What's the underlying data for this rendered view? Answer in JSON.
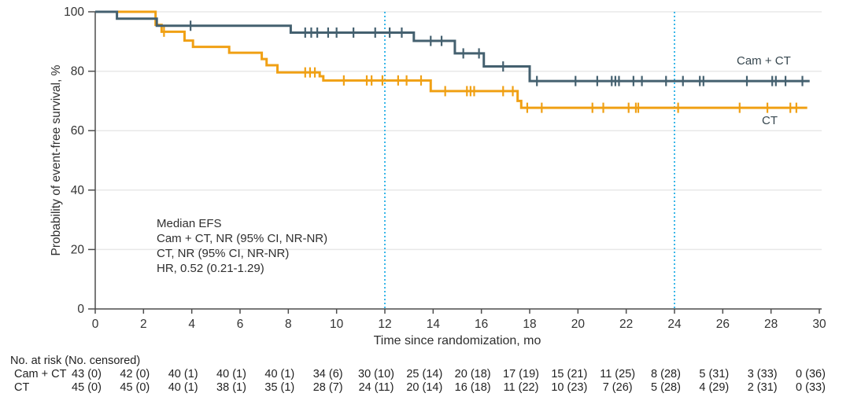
{
  "chart_data": {
    "type": "line",
    "subtype": "kaplan-meier-step",
    "title": "",
    "xlabel": "Time since randomization, mo",
    "ylabel": "Probability of event-free survival, %",
    "xlim": [
      0,
      30
    ],
    "ylim": [
      0,
      100
    ],
    "x_ticks": [
      0,
      2,
      4,
      6,
      8,
      10,
      12,
      14,
      16,
      18,
      20,
      22,
      24,
      26,
      28,
      30
    ],
    "y_ticks": [
      0,
      20,
      40,
      60,
      80,
      100
    ],
    "grid": "horizontal-light",
    "gridline_color": "#e8e8e8",
    "axis_color": "#4d4d4d",
    "tick_label_color": "#333333",
    "reference_lines_x": [
      12,
      24
    ],
    "reference_line_color": "#3ab7e8",
    "annotation_lines": [
      "Median EFS",
      "Cam + CT, NR (95% CI, NR-NR)",
      "CT, NR (95% CI, NR-NR)",
      "HR, 0.52 (0.21-1.29)"
    ],
    "legend_position": "curve-end-labels",
    "series": [
      {
        "id": "cam-ct",
        "name": "Cam + CT",
        "color": "#44606f",
        "start": [
          0,
          100
        ],
        "steps": [
          [
            0.9,
            97.7
          ],
          [
            2.55,
            95.3
          ],
          [
            8.1,
            93.0
          ],
          [
            13.2,
            90.2
          ],
          [
            14.9,
            86.0
          ],
          [
            16.1,
            81.6
          ],
          [
            18.0,
            76.7
          ]
        ],
        "end_x": 29.6,
        "censor_marks": [
          [
            3.95,
            95.3
          ],
          [
            8.7,
            93.0
          ],
          [
            8.95,
            93.0
          ],
          [
            9.2,
            93.0
          ],
          [
            9.65,
            93.0
          ],
          [
            10.0,
            93.0
          ],
          [
            10.7,
            93.0
          ],
          [
            11.6,
            93.0
          ],
          [
            12.2,
            93.0
          ],
          [
            12.7,
            93.0
          ],
          [
            13.9,
            90.2
          ],
          [
            14.35,
            90.2
          ],
          [
            15.25,
            86.0
          ],
          [
            15.9,
            86.0
          ],
          [
            16.9,
            81.6
          ],
          [
            18.3,
            76.7
          ],
          [
            19.9,
            76.7
          ],
          [
            20.8,
            76.7
          ],
          [
            21.4,
            76.7
          ],
          [
            21.55,
            76.7
          ],
          [
            21.7,
            76.7
          ],
          [
            22.3,
            76.7
          ],
          [
            22.65,
            76.7
          ],
          [
            23.65,
            76.7
          ],
          [
            24.35,
            76.7
          ],
          [
            25.05,
            76.7
          ],
          [
            25.2,
            76.7
          ],
          [
            27.0,
            76.7
          ],
          [
            28.05,
            76.7
          ],
          [
            28.2,
            76.7
          ],
          [
            28.6,
            76.7
          ],
          [
            29.3,
            76.7
          ]
        ]
      },
      {
        "id": "ct",
        "name": "CT",
        "color": "#f0a014",
        "start": [
          0,
          100
        ],
        "steps": [
          [
            2.5,
            95.6
          ],
          [
            2.75,
            93.3
          ],
          [
            3.7,
            90.3
          ],
          [
            4.05,
            88.2
          ],
          [
            5.55,
            86.2
          ],
          [
            6.9,
            84.1
          ],
          [
            7.1,
            82.0
          ],
          [
            7.55,
            79.6
          ],
          [
            9.3,
            78.3
          ],
          [
            9.45,
            76.9
          ],
          [
            13.9,
            73.3
          ],
          [
            17.5,
            70.0
          ],
          [
            17.65,
            67.7
          ]
        ],
        "end_x": 29.5,
        "censor_marks": [
          [
            2.85,
            93.3
          ],
          [
            8.7,
            79.6
          ],
          [
            8.9,
            79.6
          ],
          [
            9.1,
            79.6
          ],
          [
            10.3,
            76.9
          ],
          [
            11.25,
            76.9
          ],
          [
            11.45,
            76.9
          ],
          [
            11.9,
            76.9
          ],
          [
            12.55,
            76.9
          ],
          [
            12.9,
            76.9
          ],
          [
            13.5,
            76.9
          ],
          [
            14.5,
            73.3
          ],
          [
            15.4,
            73.3
          ],
          [
            15.55,
            73.3
          ],
          [
            15.7,
            73.3
          ],
          [
            16.9,
            73.3
          ],
          [
            17.3,
            73.3
          ],
          [
            17.9,
            67.7
          ],
          [
            18.5,
            67.7
          ],
          [
            20.6,
            67.7
          ],
          [
            21.05,
            67.7
          ],
          [
            22.1,
            67.7
          ],
          [
            22.4,
            67.7
          ],
          [
            22.5,
            67.7
          ],
          [
            24.15,
            67.7
          ],
          [
            26.7,
            67.7
          ],
          [
            27.85,
            67.7
          ],
          [
            28.8,
            67.7
          ],
          [
            29.05,
            67.7
          ]
        ]
      }
    ]
  },
  "risk_table": {
    "header": "No. at risk (No. censored)",
    "rows": [
      {
        "label": "Cam + CT",
        "values": [
          "43 (0)",
          "42 (0)",
          "40 (1)",
          "40 (1)",
          "40 (1)",
          "34 (6)",
          "30 (10)",
          "25 (14)",
          "20 (18)",
          "17 (19)",
          "15 (21)",
          "11 (25)",
          "8 (28)",
          "5 (31)",
          "3 (33)",
          "0 (36)"
        ]
      },
      {
        "label": "CT",
        "values": [
          "45 (0)",
          "45 (0)",
          "40 (1)",
          "38 (1)",
          "35 (1)",
          "28 (7)",
          "24 (11)",
          "20 (14)",
          "16 (18)",
          "11 (22)",
          "10 (23)",
          "7 (26)",
          "5 (28)",
          "4 (29)",
          "2 (31)",
          "0 (33)"
        ]
      }
    ]
  }
}
